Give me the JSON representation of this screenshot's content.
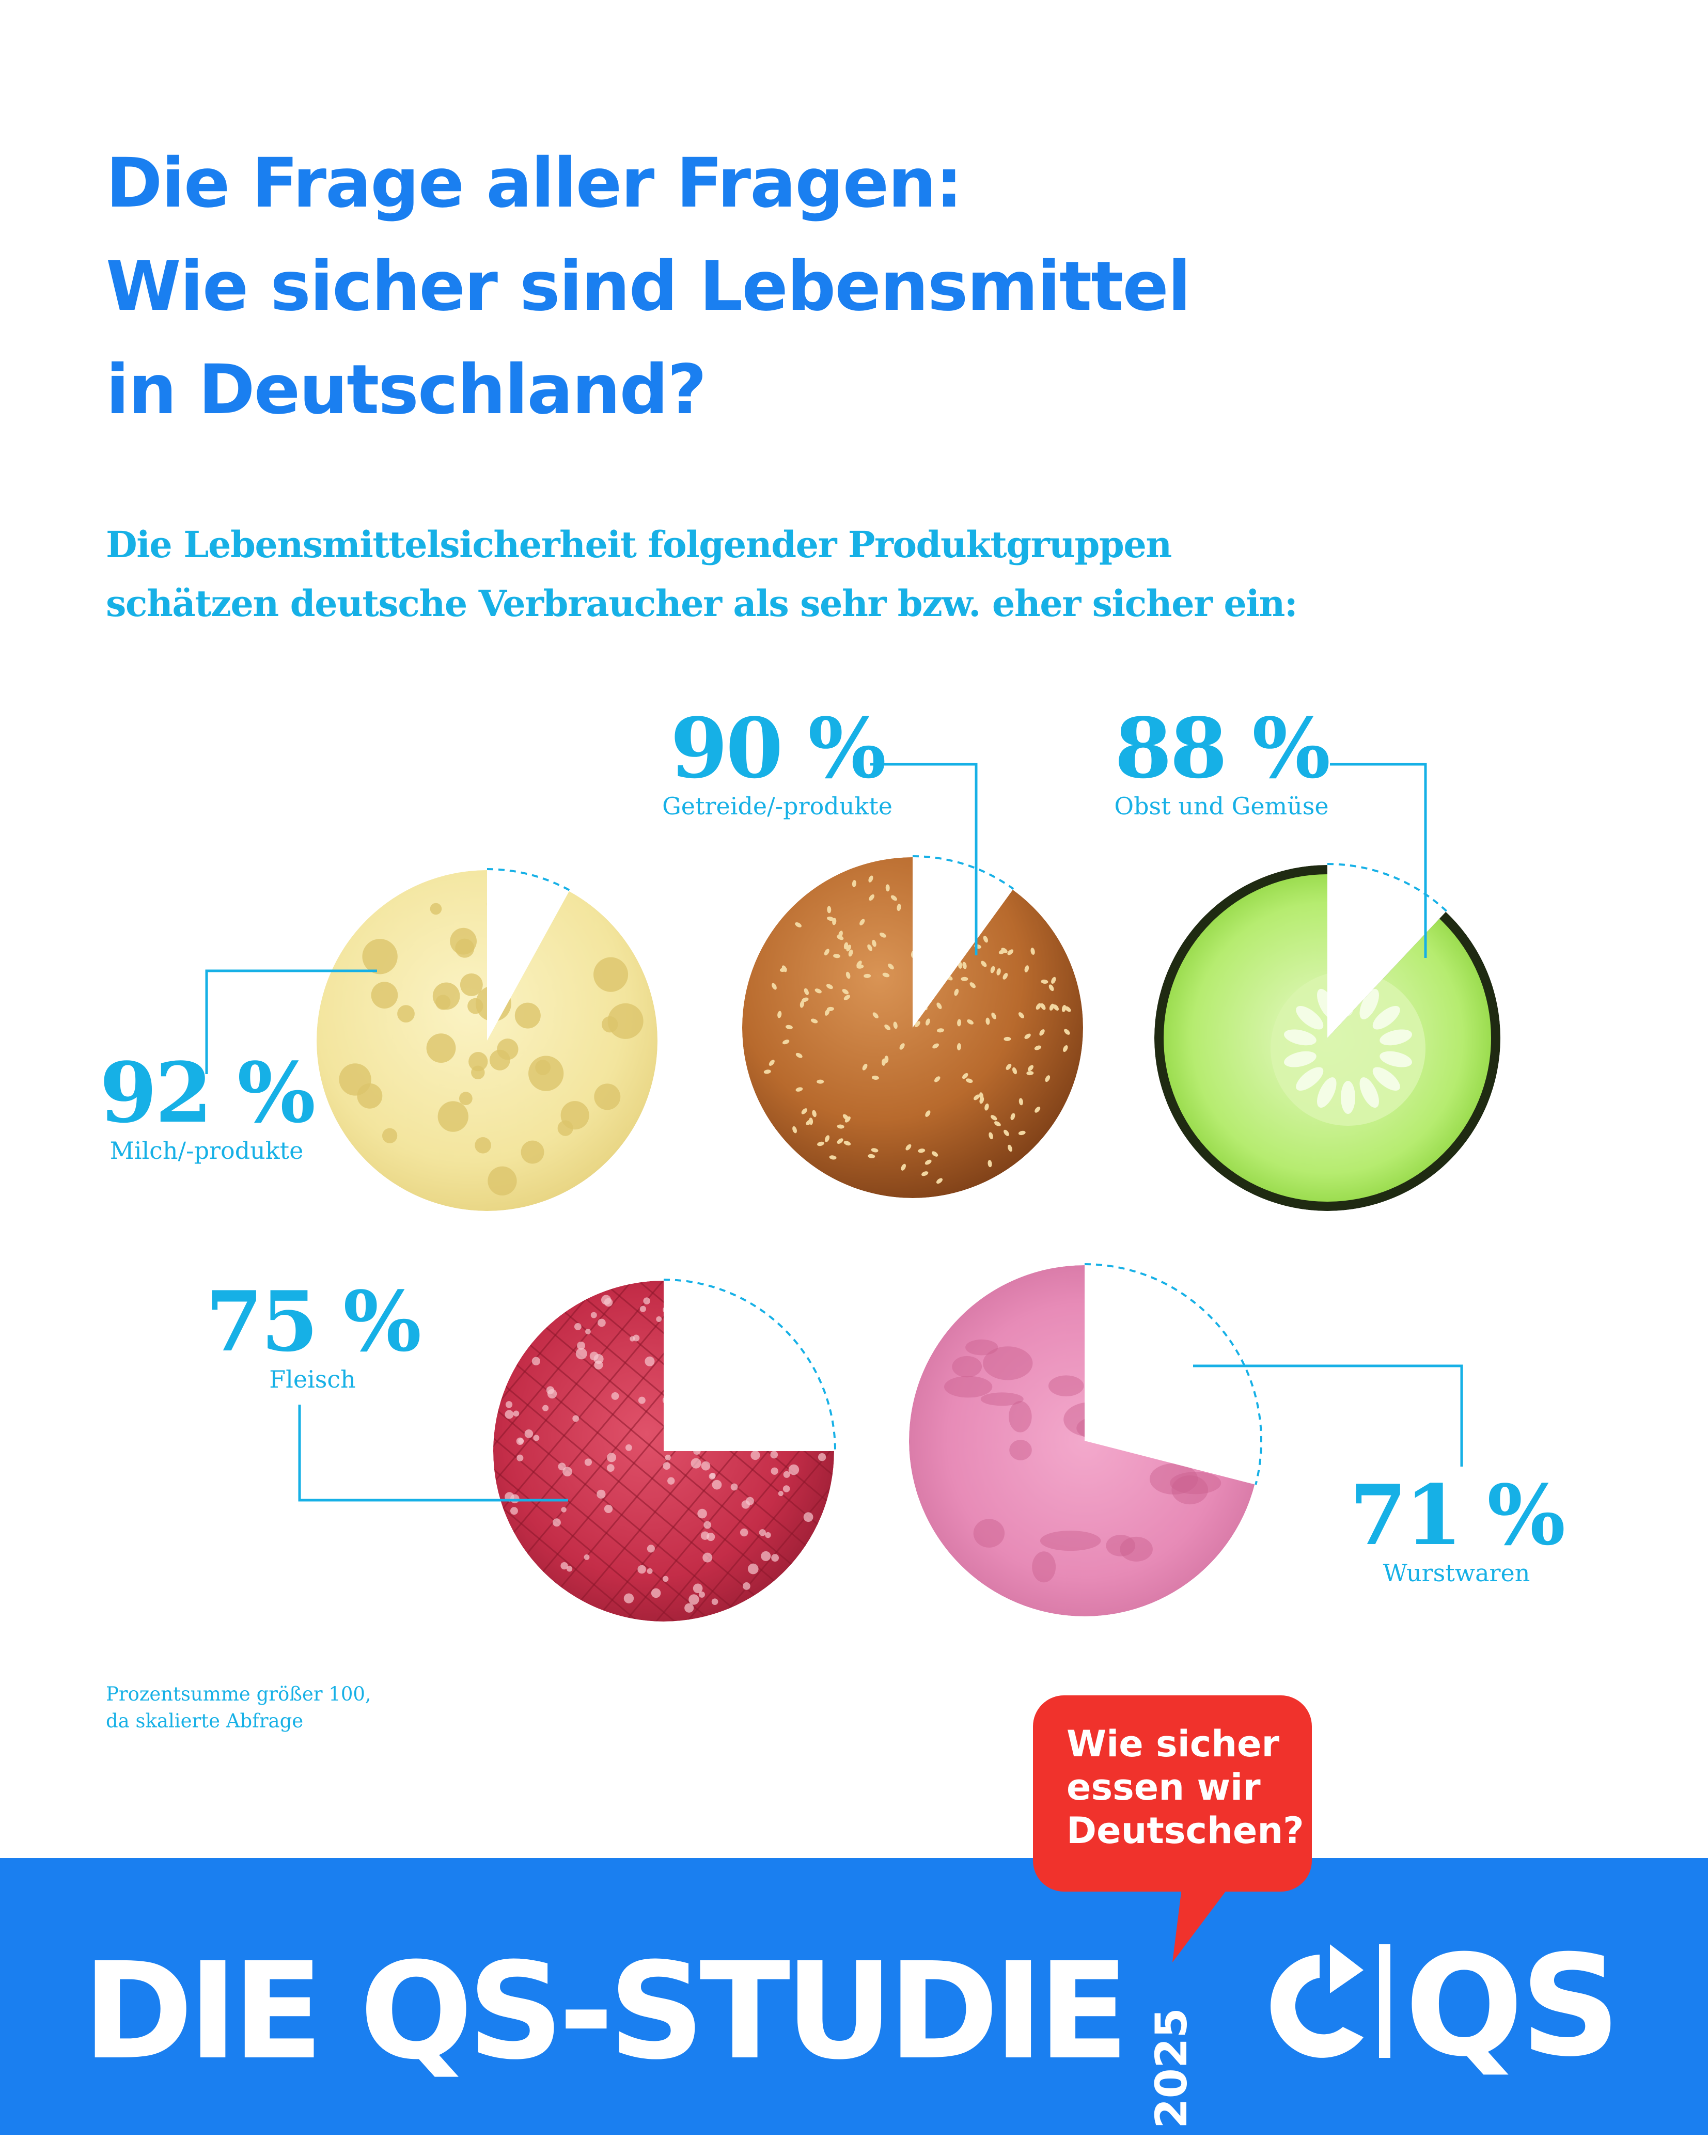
{
  "header": {
    "title_lines": [
      "Die Frage aller Fragen:",
      "Wie sicher sind Lebensmittel",
      "in Deutschland?"
    ],
    "subtitle_lines": [
      "Die Lebensmittelsicherheit folgender Produktgruppen",
      "schätzen deutsche Verbraucher als sehr bzw. eher sicher ein:"
    ]
  },
  "chart_data": {
    "type": "pie",
    "unit": "%",
    "categories": [
      "Milch/-produkte",
      "Getreide/-produkte",
      "Obst und Gemüse",
      "Fleisch",
      "Wurstwaren"
    ],
    "values": [
      92,
      90,
      88,
      75,
      71
    ],
    "labels": [
      "92 %",
      "90 %",
      "88 %",
      "75 %",
      "71 %"
    ],
    "images": [
      "cheese",
      "bread",
      "cucumber",
      "minced-meat",
      "sausage"
    ],
    "colors": {
      "label": "#16b0e6",
      "leader_line": "#16b0e6",
      "dashed_outline": "#16b0e6"
    }
  },
  "footnote_lines": [
    "Prozentsumme größer 100,",
    "da skalierte Abfrage"
  ],
  "bubble_lines": [
    "Wie sicher",
    "essen wir",
    "Deutschen?"
  ],
  "footer": {
    "title": "DIE QS-STUDIE",
    "year": "2025",
    "logo_text": "QS",
    "logo_icon": "qs-cycle-arrow-icon"
  },
  "colors": {
    "title": "#1a7ff0",
    "subtitle": "#16b0e6",
    "footer_background": "#1a7ff0",
    "bubble": "#f0322c",
    "footer_text": "#ffffff"
  }
}
